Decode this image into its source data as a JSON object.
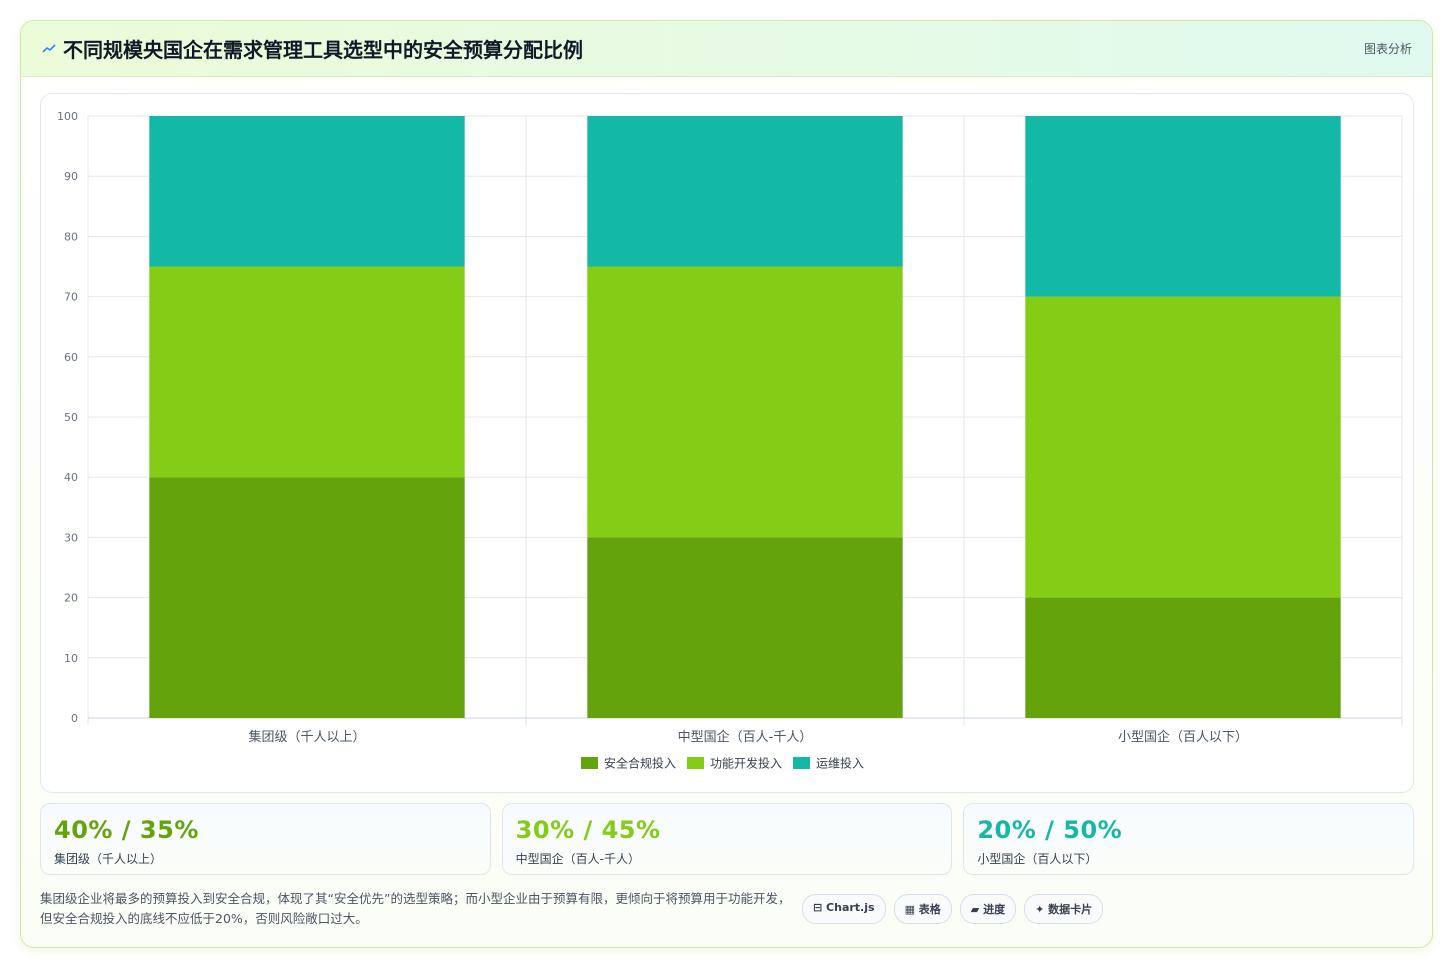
{
  "header": {
    "title": "不同规模央国企在需求管理工具选型中的安全预算分配比例",
    "tag": "图表分析"
  },
  "colors": {
    "security": "#65a30d",
    "feature": "#84cc16",
    "ops": "#14b8a6"
  },
  "chart_data": {
    "type": "bar",
    "stacked": true,
    "categories": [
      "集团级（千人以上）",
      "中型国企（百人-千人）",
      "小型国企（百人以下）"
    ],
    "series": [
      {
        "name": "安全合规投入",
        "values": [
          40,
          30,
          20
        ]
      },
      {
        "name": "功能开发投入",
        "values": [
          35,
          45,
          50
        ]
      },
      {
        "name": "运维投入",
        "values": [
          25,
          25,
          30
        ]
      }
    ],
    "ylim": [
      0,
      100
    ],
    "yticks": [
      "0",
      "10",
      "20",
      "30",
      "40",
      "50",
      "60",
      "70",
      "80",
      "90",
      "100"
    ],
    "grid": true,
    "legend": "bottom"
  },
  "kpis": [
    {
      "value": "40% / 35%",
      "label": "集团级（千人以上）"
    },
    {
      "value": "30% / 45%",
      "label": "中型国企（百人-千人）"
    },
    {
      "value": "20% / 50%",
      "label": "小型国企（百人以下）"
    }
  ],
  "note": "集团级企业将最多的预算投入到安全合规，体现了其“安全优先”的选型策略；而小型企业由于预算有限，更倾向于将预算用于功能开发，但安全合规投入的底线不应低于20%，否则风险敞口过大。",
  "chips": [
    "⊟ Chart.js",
    "▦ 表格",
    "▰ 进度",
    "✦ 数据卡片"
  ]
}
